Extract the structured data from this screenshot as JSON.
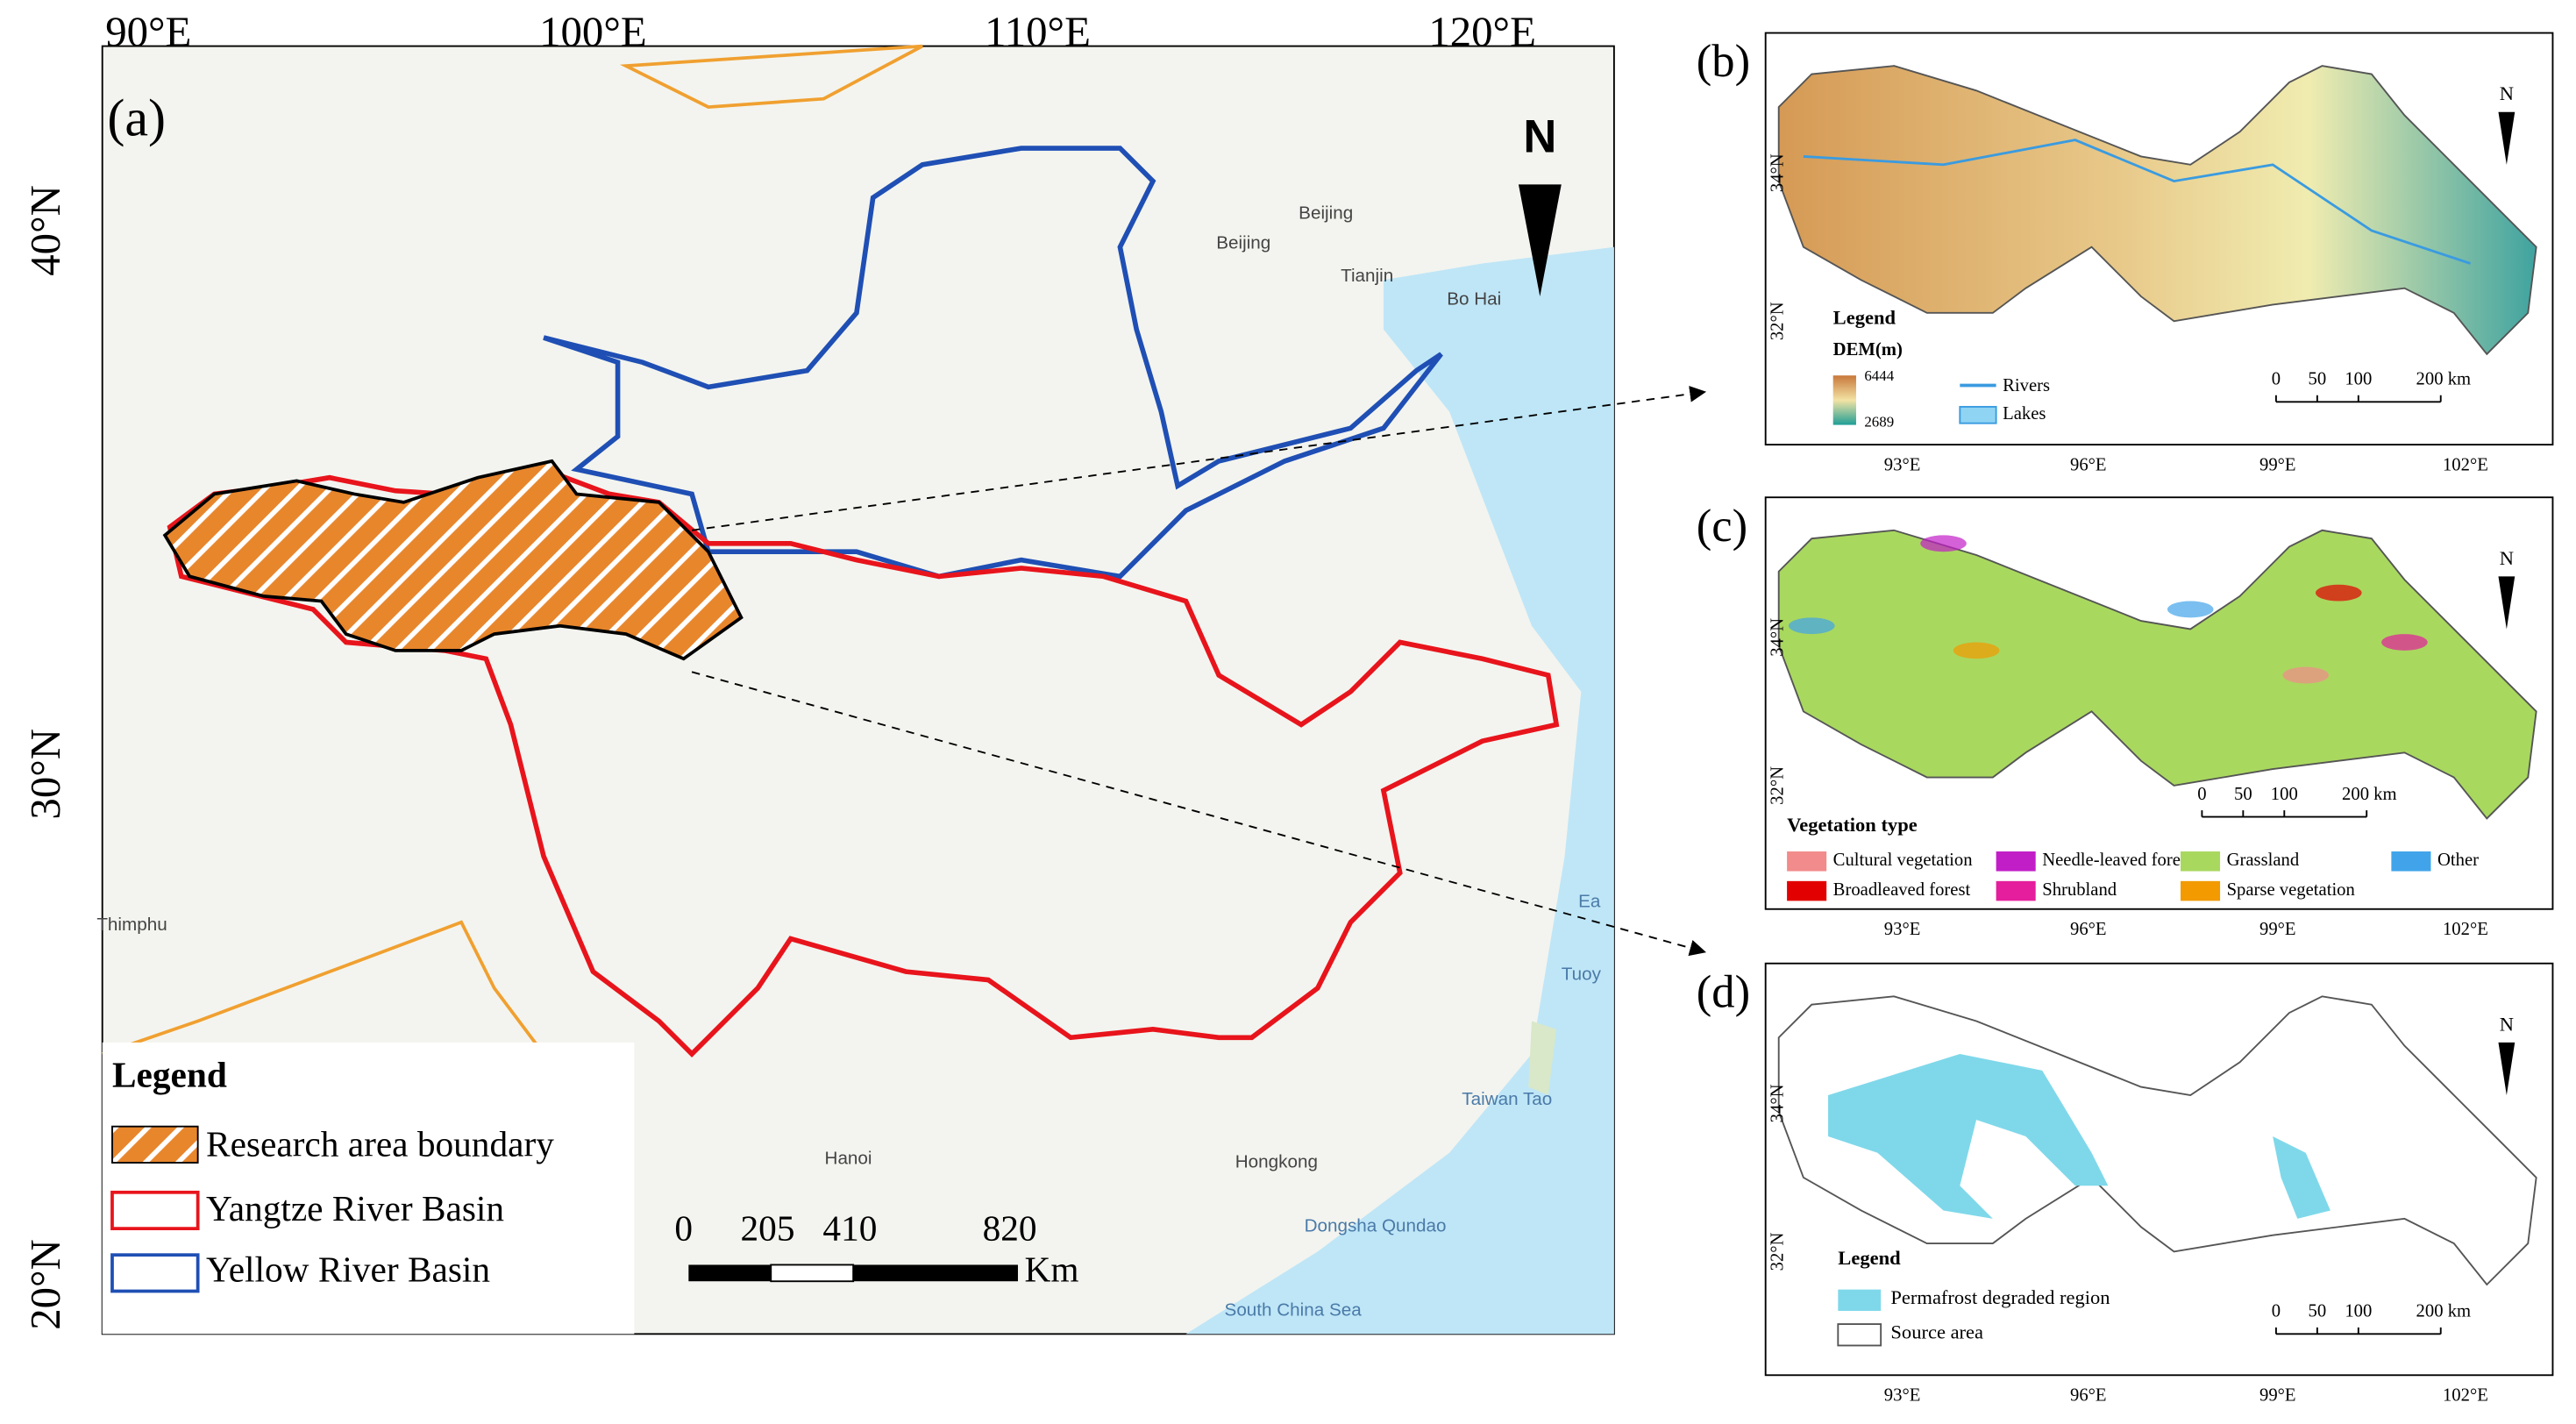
{
  "panel_a": {
    "label": "(a)",
    "x_ticks": [
      "90°E",
      "100°E",
      "110°E",
      "120°E"
    ],
    "y_ticks": [
      "40°N",
      "30°N",
      "20°N"
    ],
    "north": "N",
    "places": [
      "Beijing",
      "Beijing",
      "Tianjin",
      "Bo Hai",
      "Thimphu",
      "Hanoi",
      "Hongkong",
      "Dongsha Qundao",
      "South China Sea",
      "Taiwan Tao",
      "Ea",
      "Tuoy"
    ],
    "legend": {
      "title": "Legend",
      "items": [
        "Research area boundary",
        "Yangtze River Basin",
        "Yellow River Basin"
      ]
    },
    "scale": {
      "labels": [
        "0",
        "205",
        "410",
        "820"
      ],
      "unit": "Km"
    }
  },
  "panel_b": {
    "label": "(b)",
    "x_ticks": [
      "93°E",
      "96°E",
      "99°E",
      "102°E"
    ],
    "y_ticks": [
      "34°N",
      "32°N"
    ],
    "north": "N",
    "legend": {
      "title": "Legend",
      "subtitle": "DEM(m)",
      "max": "6444",
      "min": "2689",
      "items": [
        "Rivers",
        "Lakes"
      ]
    },
    "scale": [
      "0",
      "50",
      "100",
      "200 km"
    ]
  },
  "panel_c": {
    "label": "(c)",
    "x_ticks": [
      "93°E",
      "96°E",
      "99°E",
      "102°E"
    ],
    "y_ticks": [
      "34°N",
      "32°N"
    ],
    "north": "N",
    "legend": {
      "title": "Vegetation type",
      "items": [
        {
          "name": "Cultural vegetation",
          "color": "#f28b8b"
        },
        {
          "name": "Needle-leaved forest",
          "color": "#c21ec8"
        },
        {
          "name": "Grassland",
          "color": "#a9d85f"
        },
        {
          "name": "Other",
          "color": "#41a4ea"
        },
        {
          "name": "Broadleaved forest",
          "color": "#e20000"
        },
        {
          "name": "Shrubland",
          "color": "#e41e9c"
        },
        {
          "name": "Sparse vegetation",
          "color": "#f29a00"
        }
      ]
    },
    "scale": [
      "0",
      "50",
      "100",
      "200 km"
    ]
  },
  "panel_d": {
    "label": "(d)",
    "x_ticks": [
      "93°E",
      "96°E",
      "99°E",
      "102°E"
    ],
    "y_ticks": [
      "34°N",
      "32°N"
    ],
    "north": "N",
    "legend": {
      "title": "Legend",
      "items": [
        "Permafrost degraded region",
        "Source area"
      ]
    },
    "scale": [
      "0",
      "50",
      "100",
      "200 km"
    ]
  }
}
